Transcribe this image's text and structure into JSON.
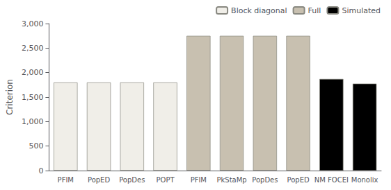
{
  "chart_data": {
    "type": "bar",
    "categories": [
      "PFIM",
      "PopED",
      "PopDes",
      "POPT",
      "PFIM",
      "PkStaMp",
      "PopDes",
      "PopED",
      "NM FOCEI",
      "Monolix"
    ],
    "series": [
      {
        "name": "Block diagonal",
        "color": "#f0eee8",
        "values": [
          1800,
          1800,
          1800,
          1800,
          null,
          null,
          null,
          null,
          null,
          null
        ]
      },
      {
        "name": "Full",
        "color": "#c8c0b0",
        "values": [
          null,
          null,
          null,
          null,
          2750,
          2750,
          2750,
          2750,
          null,
          null
        ]
      },
      {
        "name": "Simulated",
        "color": "#000000",
        "values": [
          null,
          null,
          null,
          null,
          null,
          null,
          null,
          null,
          1870,
          1775
        ]
      }
    ],
    "ylabel": "Criterion",
    "ylim": [
      0,
      3000
    ],
    "yticks": [
      0,
      500,
      1000,
      1500,
      2000,
      2500,
      3000
    ],
    "grid": false,
    "legend": "upper right"
  }
}
